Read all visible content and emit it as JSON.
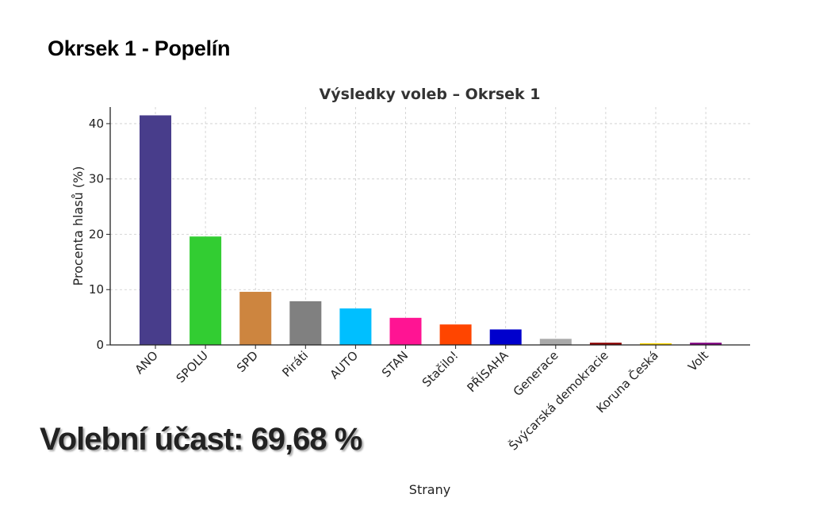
{
  "heading": {
    "title": "Okrsek 1 - Popelín"
  },
  "turnout": {
    "text": "Volební účast: 69,68 %",
    "value": 69.68
  },
  "chart_data": {
    "type": "bar",
    "title": "Výsledky voleb – Okrsek 1",
    "xlabel": "Strany",
    "ylabel": "Procenta hlasů (%)",
    "ylim": [
      0,
      43
    ],
    "yticks": [
      0,
      10,
      20,
      30,
      40
    ],
    "grid": true,
    "categories": [
      "ANO",
      "SPOLU",
      "SPD",
      "Piráti",
      "AUTO",
      "STAN",
      "Stačilo!",
      "PŘÍSAHA",
      "Generace",
      "Švýcarská demokracie",
      "Koruna Česká",
      "Volt"
    ],
    "values": [
      41.5,
      19.6,
      9.6,
      7.9,
      6.6,
      4.9,
      3.7,
      2.8,
      1.1,
      0.4,
      0.3,
      0.4
    ],
    "colors": [
      "#483D8B",
      "#32CD32",
      "#CD853F",
      "#808080",
      "#00BFFF",
      "#FF1493",
      "#FF4500",
      "#0000CD",
      "#A9A9A9",
      "#8B0000",
      "#FFD700",
      "#800080"
    ]
  }
}
